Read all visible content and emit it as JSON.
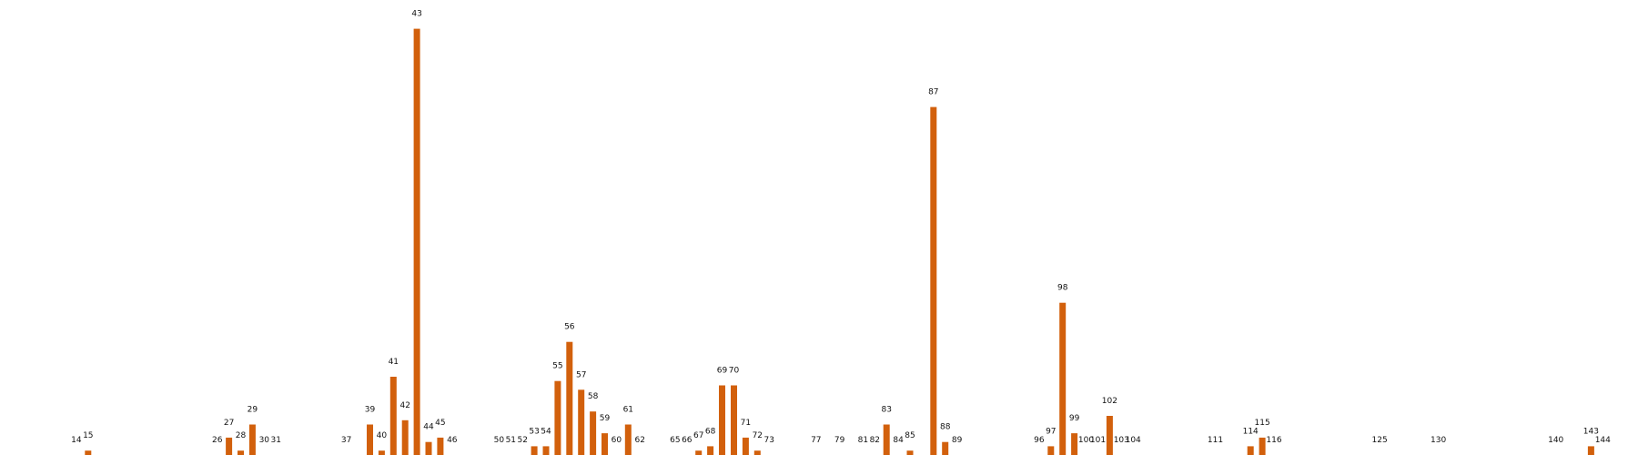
{
  "chart_data": {
    "type": "bar",
    "x": [
      14,
      15,
      26,
      27,
      28,
      29,
      30,
      31,
      37,
      39,
      40,
      41,
      42,
      43,
      44,
      45,
      46,
      50,
      51,
      52,
      53,
      54,
      55,
      56,
      57,
      58,
      59,
      60,
      61,
      62,
      65,
      66,
      67,
      68,
      69,
      70,
      71,
      72,
      73,
      77,
      79,
      81,
      82,
      83,
      84,
      85,
      87,
      88,
      89,
      96,
      97,
      98,
      99,
      100,
      101,
      102,
      103,
      104,
      111,
      114,
      115,
      116,
      125,
      130,
      140,
      143,
      144
    ],
    "values": [
      0,
      1,
      0,
      4,
      1,
      7,
      0,
      0,
      0,
      7,
      1,
      18,
      8,
      98,
      3,
      4,
      0,
      0,
      0,
      0,
      2,
      2,
      17,
      26,
      15,
      10,
      5,
      0,
      7,
      0,
      0,
      0,
      1,
      2,
      16,
      16,
      4,
      1,
      0,
      0,
      0,
      0,
      0,
      7,
      0,
      1,
      80,
      3,
      0,
      0,
      2,
      35,
      5,
      0,
      0,
      9,
      0,
      0,
      0,
      2,
      4,
      0,
      0,
      0,
      0,
      2,
      0
    ],
    "labels": [
      "14",
      "15",
      "26",
      "27",
      "28",
      "29",
      "30",
      "31",
      "37",
      "39",
      "40",
      "41",
      "42",
      "43",
      "44",
      "45",
      "46",
      "50",
      "51",
      "52",
      "53",
      "54",
      "55",
      "56",
      "57",
      "58",
      "59",
      "60",
      "61",
      "62",
      "65",
      "66",
      "67",
      "68",
      "69",
      "70",
      "71",
      "72",
      "73",
      "77",
      "79",
      "81",
      "82",
      "83",
      "84",
      "85",
      "87",
      "88",
      "89",
      "96",
      "97",
      "98",
      "99",
      "100",
      "101",
      "102",
      "103",
      "104",
      "111",
      "114",
      "115",
      "116",
      "125",
      "130",
      "140",
      "143",
      "144"
    ],
    "color": "#d2600c",
    "title": "",
    "xlabel": "",
    "ylabel": "",
    "ylim": [
      0,
      100
    ],
    "xlim": [
      7.5,
      147
    ],
    "grid": false,
    "axes_visible": false
  }
}
